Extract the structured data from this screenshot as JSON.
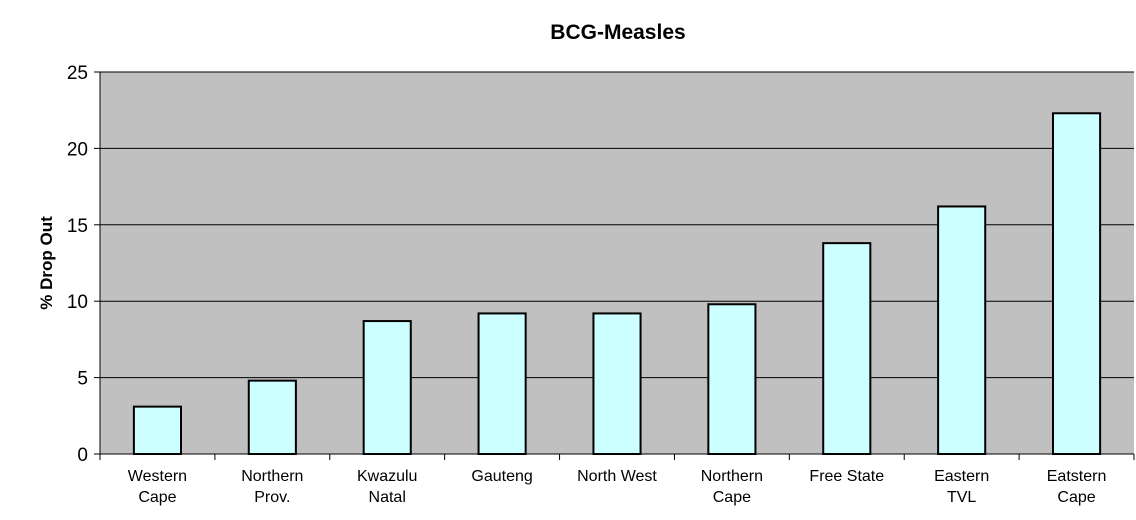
{
  "chart_data": {
    "type": "bar",
    "title": "BCG-Measles",
    "xlabel": "",
    "ylabel": "% Drop Out",
    "ylim": [
      0,
      25
    ],
    "yticks": [
      0,
      5,
      10,
      15,
      20,
      25
    ],
    "grid": true,
    "legend": "none",
    "categories": [
      [
        "Western",
        "Cape"
      ],
      [
        "Northern",
        "Prov."
      ],
      [
        "Kwazulu",
        "Natal"
      ],
      [
        "Gauteng"
      ],
      [
        "North West"
      ],
      [
        "Northern",
        "Cape"
      ],
      [
        "Free State"
      ],
      [
        "Eastern",
        "TVL"
      ],
      [
        "Eatstern",
        "Cape"
      ]
    ],
    "values": [
      3.1,
      4.8,
      8.7,
      9.2,
      9.2,
      9.8,
      13.8,
      16.2,
      22.3
    ],
    "colors": {
      "plot_background": "#c0c0c0",
      "bar_fill": "#ccffff",
      "bar_stroke": "#000000",
      "gridline": "#000000"
    }
  }
}
